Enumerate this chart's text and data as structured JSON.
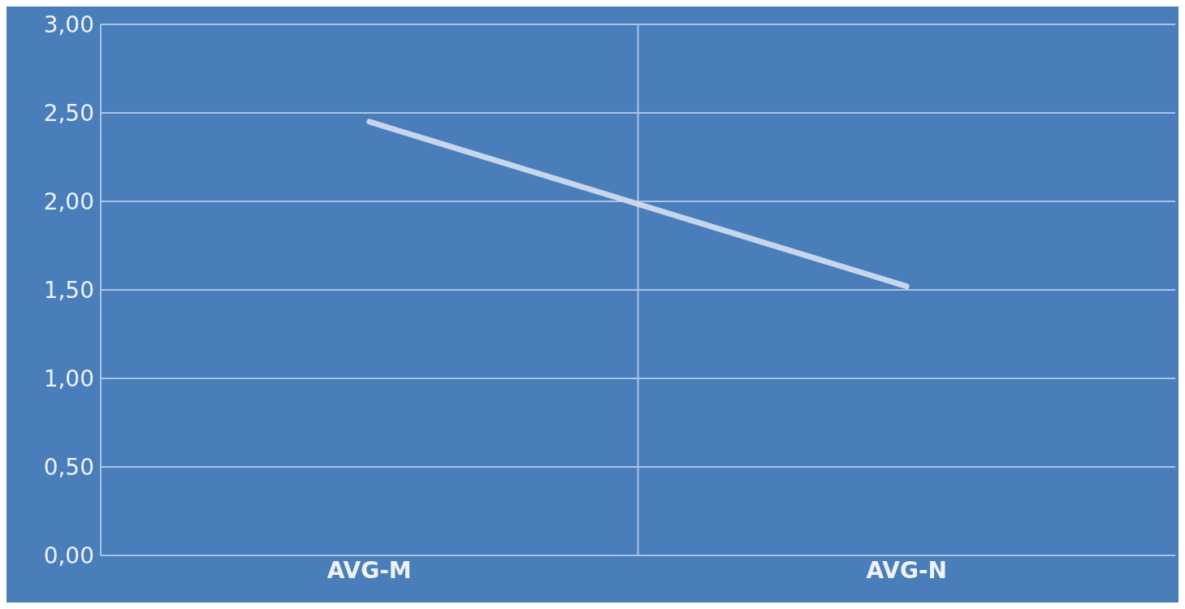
{
  "chart_data": {
    "type": "line",
    "categories": [
      "AVG-M",
      "AVG-N"
    ],
    "series": [
      {
        "color": "#c6d6ec",
        "values": [
          2.45,
          1.52
        ]
      }
    ],
    "ylim": [
      0,
      3
    ],
    "yticks": [
      {
        "value": 0,
        "label": "0,00"
      },
      {
        "value": 0.5,
        "label": "0,50"
      },
      {
        "value": 1,
        "label": "1,00"
      },
      {
        "value": 1.5,
        "label": "1,50"
      },
      {
        "value": 2,
        "label": "2,00"
      },
      {
        "value": 2.5,
        "label": "2,50"
      },
      {
        "value": 3,
        "label": "3,00"
      }
    ],
    "grid": "y",
    "legend": false,
    "marker": "none",
    "line_style": "solid"
  }
}
